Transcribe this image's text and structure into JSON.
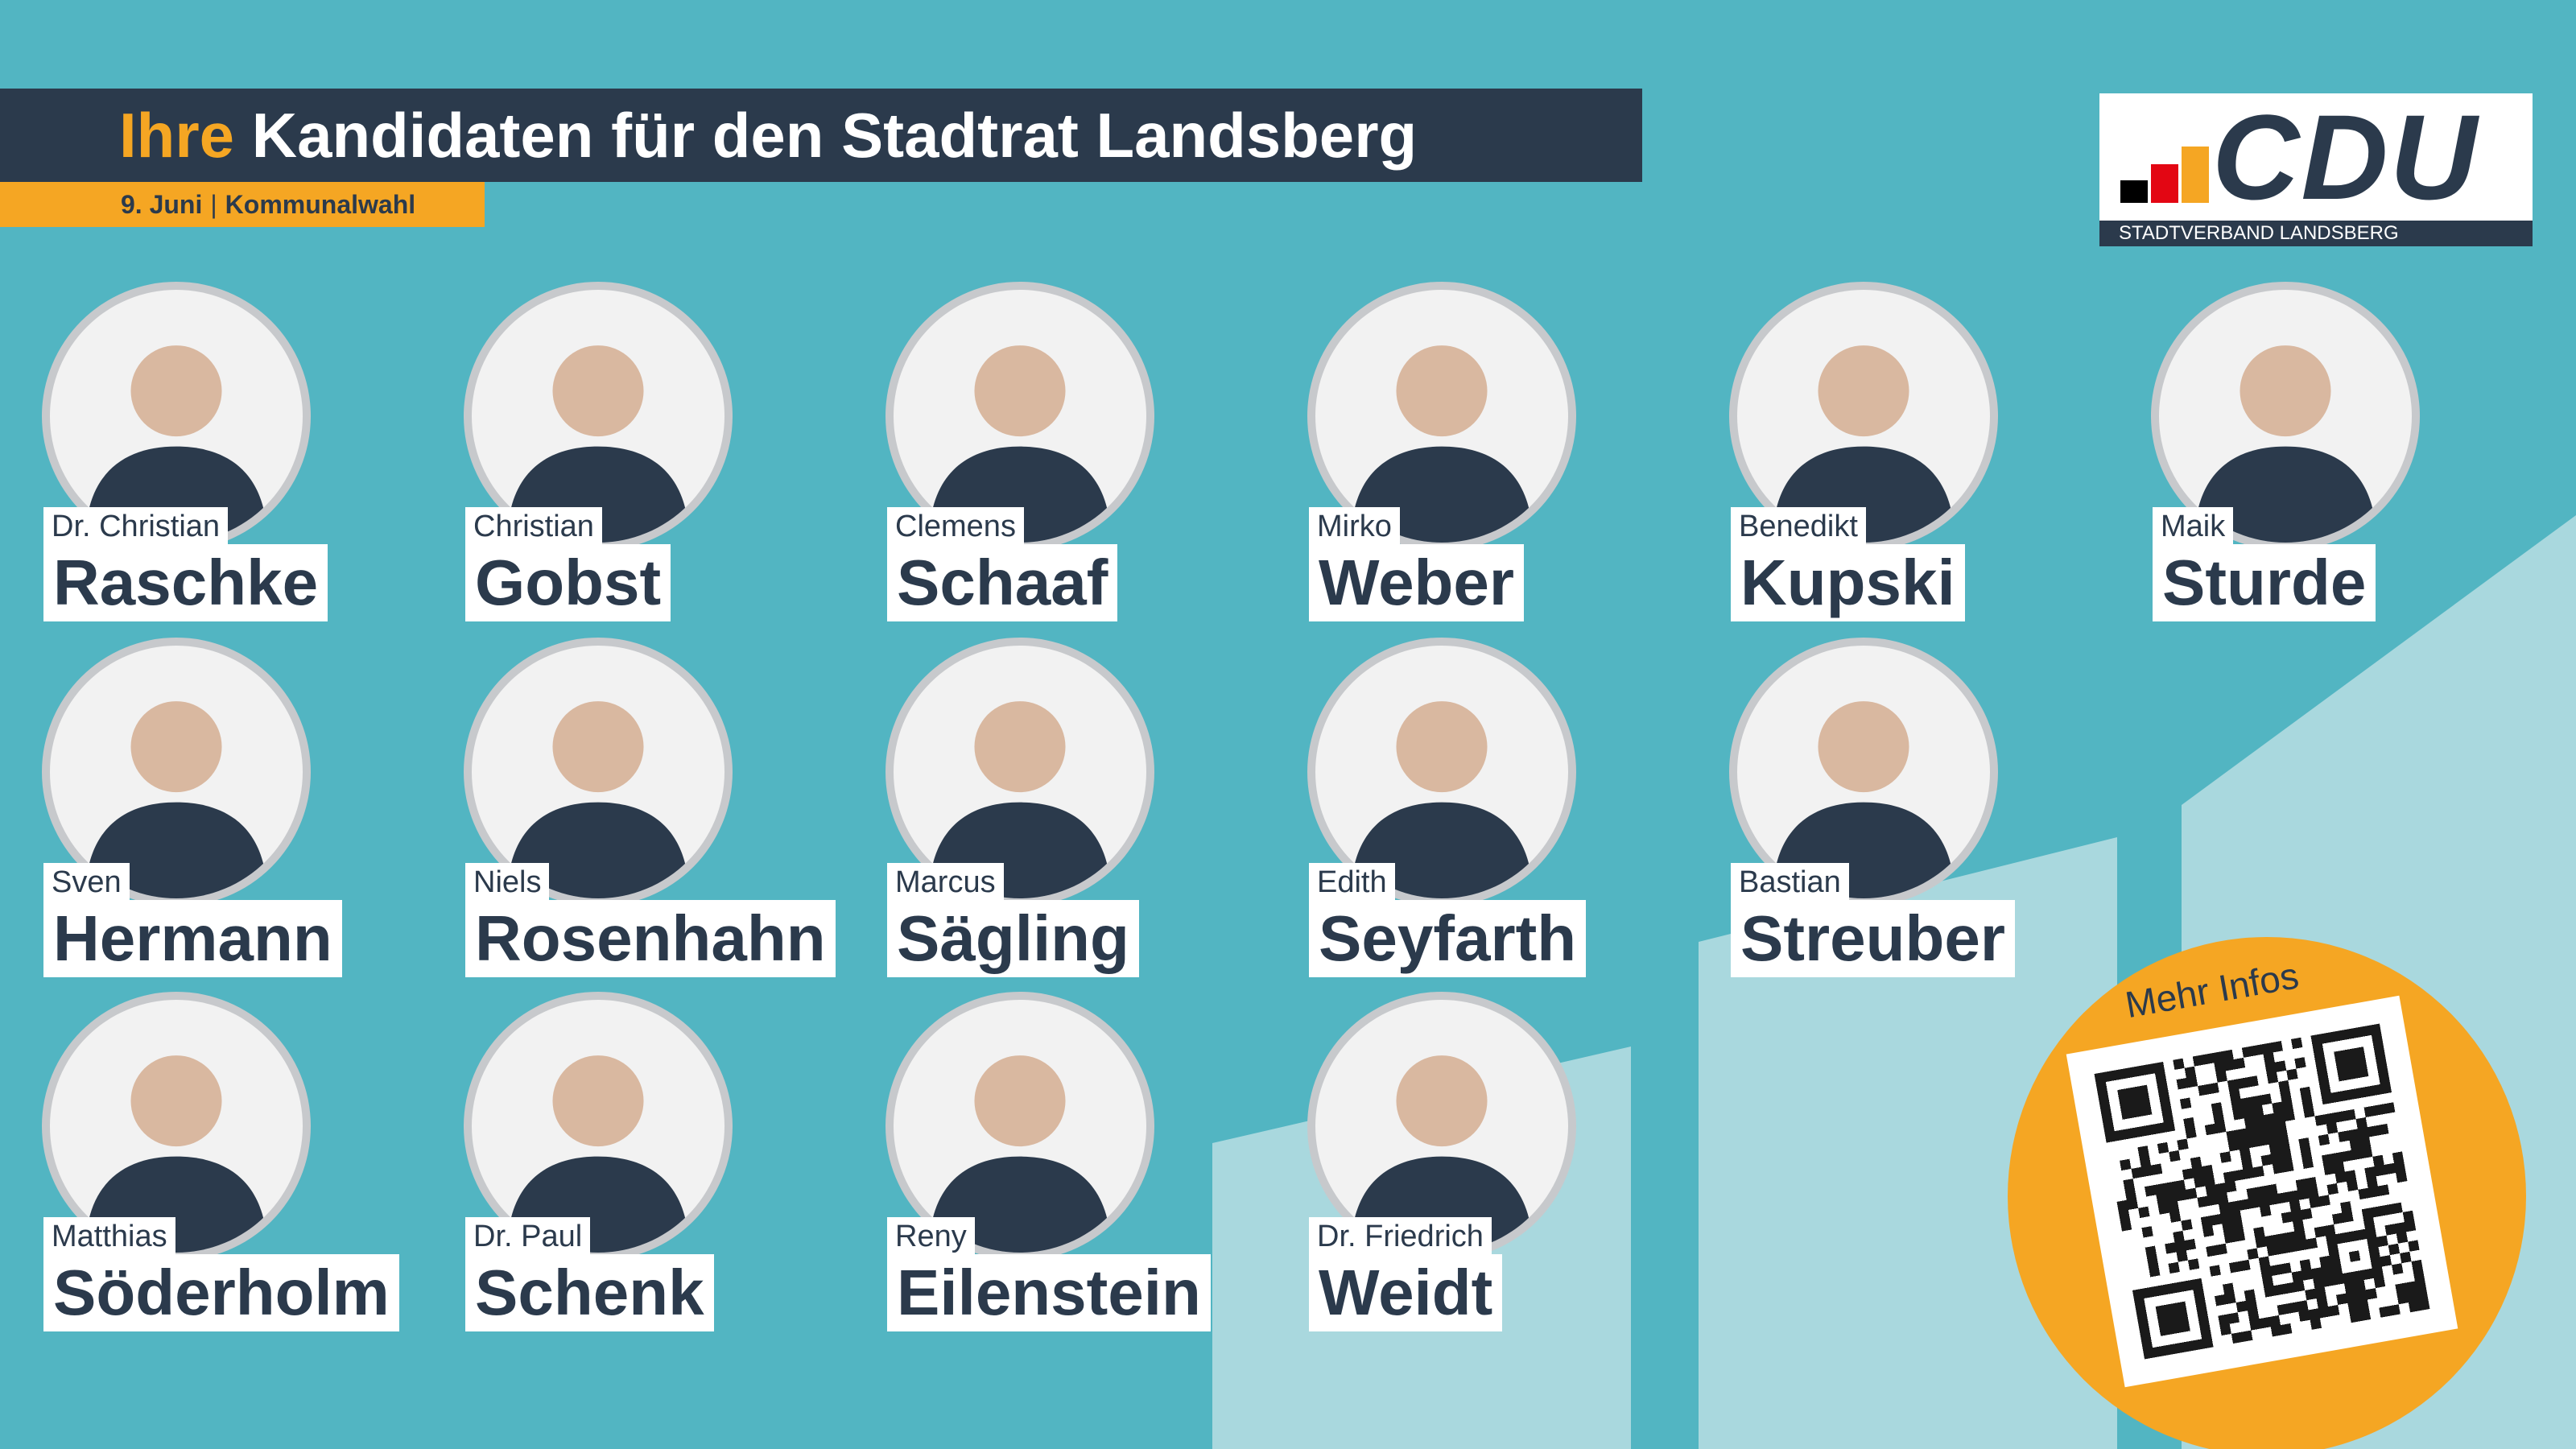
{
  "header": {
    "title_highlight": "Ihre",
    "title_rest": "Kandidaten für den Stadtrat Landsberg",
    "date": "9. Juni",
    "event": "Kommunalwahl"
  },
  "logo": {
    "text": "CDU",
    "subtitle": "STADTVERBAND LANDSBERG"
  },
  "candidates": [
    {
      "first": "Dr. Christian",
      "last": "Raschke"
    },
    {
      "first": "Christian",
      "last": "Gobst"
    },
    {
      "first": "Clemens",
      "last": "Schaaf"
    },
    {
      "first": "Mirko",
      "last": "Weber"
    },
    {
      "first": "Benedikt",
      "last": "Kupski"
    },
    {
      "first": "Maik",
      "last": "Sturde"
    },
    {
      "first": "Sven",
      "last": "Hermann"
    },
    {
      "first": "Niels",
      "last": "Rosenhahn"
    },
    {
      "first": "Marcus",
      "last": "Sägling"
    },
    {
      "first": "Edith",
      "last": "Seyfarth"
    },
    {
      "first": "Bastian",
      "last": "Streuber"
    },
    {
      "first": "Matthias",
      "last": "Söderholm"
    },
    {
      "first": "Dr. Paul",
      "last": "Schenk"
    },
    {
      "first": "Reny",
      "last": "Eilenstein"
    },
    {
      "first": "Dr. Friedrich",
      "last": "Weidt"
    }
  ],
  "qr": {
    "label": "Mehr Infos",
    "icon": "qr-code-icon"
  },
  "colors": {
    "background": "#52b5c2",
    "navy": "#2b3a4c",
    "accent": "#f5a623",
    "light_shape": "#a9d8de"
  }
}
